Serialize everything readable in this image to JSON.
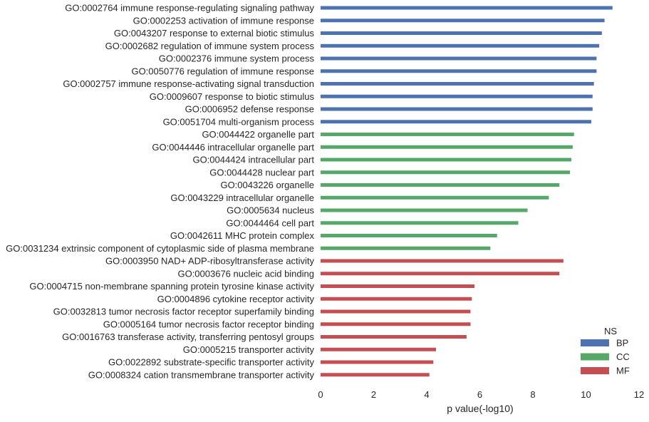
{
  "chart_data": {
    "type": "bar",
    "orientation": "horizontal",
    "categories": [
      "GO:0002764 immune response-regulating signaling pathway",
      "GO:0002253 activation of immune response",
      "GO:0043207 response to external biotic stimulus",
      "GO:0002682 regulation of immune system process",
      "GO:0002376 immune system process",
      "GO:0050776 regulation of immune response",
      "GO:0002757 immune response-activating signal transduction",
      "GO:0009607 response to biotic stimulus",
      "GO:0006952 defense response",
      "GO:0051704 multi-organism process",
      "GO:0044422 organelle part",
      "GO:0044446 intracellular organelle part",
      "GO:0044424 intracellular part",
      "GO:0044428 nuclear part",
      "GO:0043226 organelle",
      "GO:0043229 intracellular organelle",
      "GO:0005634 nucleus",
      "GO:0044464 cell part",
      "GO:0042611 MHC protein complex",
      "GO:0031234 extrinsic component of cytoplasmic side of plasma membrane",
      "GO:0003950 NAD+ ADP-ribosyltransferase activity",
      "GO:0003676 nucleic acid binding",
      "GO:0004715 non-membrane spanning protein tyrosine kinase activity",
      "GO:0004896 cytokine receptor activity",
      "GO:0032813 tumor necrosis factor receptor superfamily binding",
      "GO:0005164 tumor necrosis factor receptor binding",
      "GO:0016763 transferase activity, transferring pentosyl groups",
      "GO:0005215 transporter activity",
      "GO:0022892 substrate-specific transporter activity",
      "GO:0008324 cation transmembrane transporter activity"
    ],
    "values": [
      11.0,
      10.7,
      10.6,
      10.5,
      10.4,
      10.4,
      10.3,
      10.25,
      10.25,
      10.2,
      9.55,
      9.5,
      9.45,
      9.4,
      9.0,
      8.6,
      7.8,
      7.45,
      6.65,
      6.4,
      9.15,
      9.0,
      5.8,
      5.7,
      5.65,
      5.65,
      5.5,
      4.35,
      4.25,
      4.1
    ],
    "groups": [
      "BP",
      "BP",
      "BP",
      "BP",
      "BP",
      "BP",
      "BP",
      "BP",
      "BP",
      "BP",
      "CC",
      "CC",
      "CC",
      "CC",
      "CC",
      "CC",
      "CC",
      "CC",
      "CC",
      "CC",
      "MF",
      "MF",
      "MF",
      "MF",
      "MF",
      "MF",
      "MF",
      "MF",
      "MF",
      "MF"
    ],
    "xlabel": "p value(-log10)",
    "ylabel": "",
    "xlim": [
      0,
      12
    ],
    "xticks": [
      "0",
      "2",
      "4",
      "6",
      "8",
      "10",
      "12"
    ],
    "grid": false,
    "legend": {
      "title": "NS",
      "placement": "bottom-right",
      "entries": [
        {
          "name": "BP",
          "color": "#4c72b0"
        },
        {
          "name": "CC",
          "color": "#55a868"
        },
        {
          "name": "MF",
          "color": "#c44e52"
        }
      ]
    }
  }
}
